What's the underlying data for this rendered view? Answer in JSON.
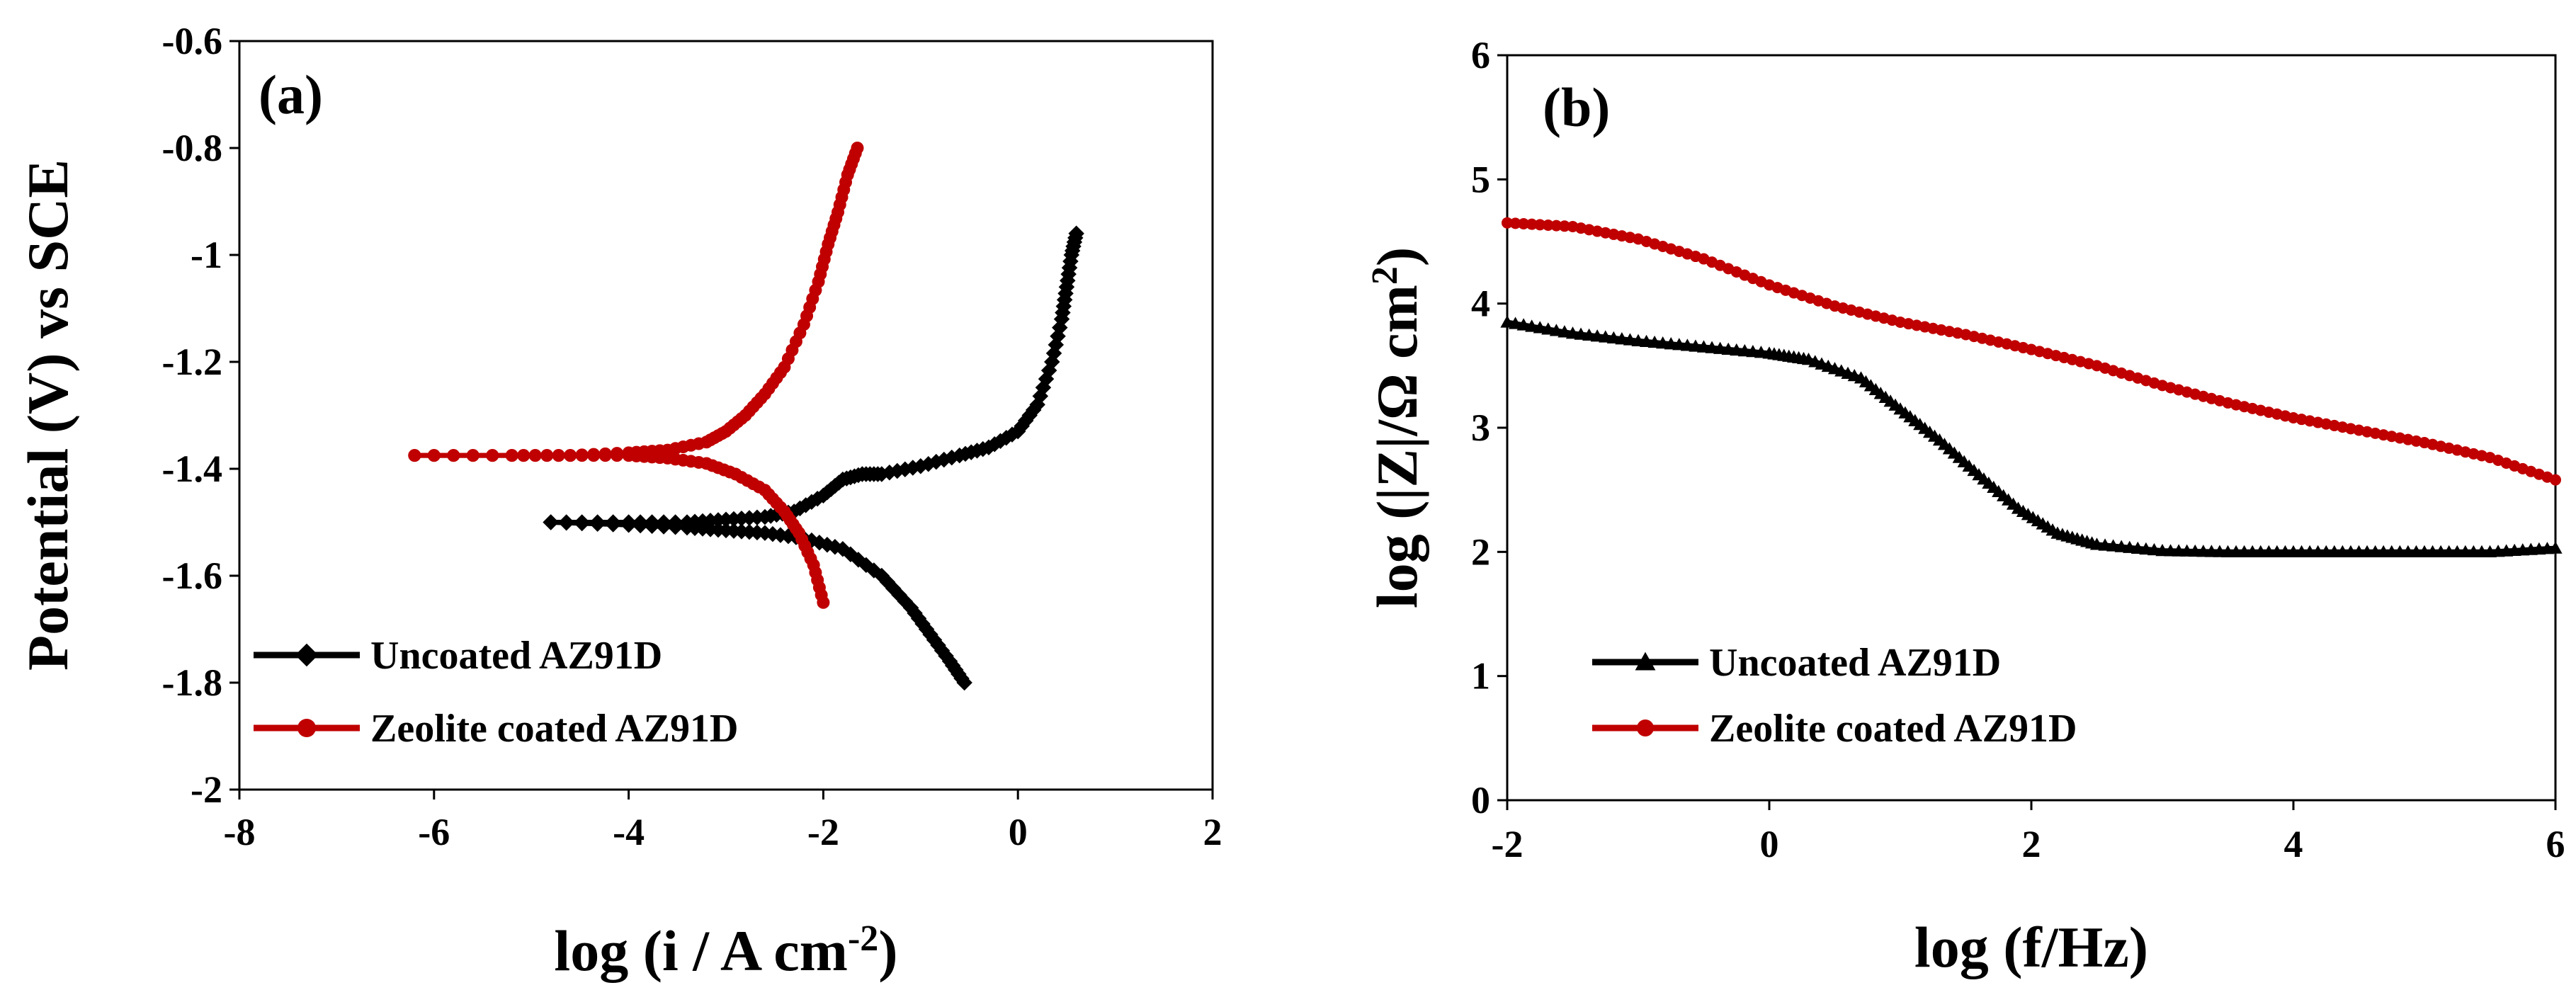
{
  "chart_data": [
    {
      "panel": "(a)",
      "type": "line",
      "xlabel_parts": [
        "log (i / A cm",
        "-2",
        ")"
      ],
      "ylabel": "Potential (V) vs SCE",
      "xlim": [
        -8,
        2
      ],
      "ylim": [
        -2,
        -0.6
      ],
      "xticks": [
        -8,
        -6,
        -4,
        -2,
        0,
        2
      ],
      "xtick_labels": [
        "-8",
        "-6",
        "-4",
        "-2",
        "0",
        "2"
      ],
      "yticks": [
        -2,
        -1.8,
        -1.6,
        -1.4,
        -1.2,
        -1,
        -0.8,
        -0.6
      ],
      "ytick_labels": [
        "-2",
        "-1.8",
        "-1.6",
        "-1.4",
        "-1.2",
        "-1",
        "-0.8",
        "-0.6"
      ],
      "legend_position": "bottom-left",
      "series": [
        {
          "name": "Uncoated AZ91D",
          "color": "#000000",
          "marker": "diamond",
          "branches": [
            {
              "x": [
                -4.8,
                -4.0,
                -3.4,
                -3.0,
                -2.6,
                -2.2,
                -1.8,
                -1.4,
                -1.1,
                -0.9,
                -0.7,
                -0.55
              ],
              "y": [
                -1.5,
                -1.505,
                -1.51,
                -1.515,
                -1.52,
                -1.53,
                -1.55,
                -1.6,
                -1.66,
                -1.71,
                -1.76,
                -1.8
              ]
            },
            {
              "x": [
                -4.8,
                -4.0,
                -3.4,
                -3.0,
                -2.6,
                -2.3,
                -2.0,
                -1.8,
                -1.6,
                -1.4,
                -1.0,
                -0.6,
                -0.3,
                0.0,
                0.2,
                0.35,
                0.45,
                0.5,
                0.55,
                0.6
              ],
              "y": [
                -1.5,
                -1.5,
                -1.5,
                -1.495,
                -1.49,
                -1.48,
                -1.45,
                -1.42,
                -1.41,
                -1.41,
                -1.395,
                -1.375,
                -1.36,
                -1.33,
                -1.28,
                -1.2,
                -1.12,
                -1.06,
                -1.0,
                -0.96
              ]
            }
          ]
        },
        {
          "name": "Zeolite coated AZ91D",
          "color": "#c00000",
          "marker": "circle",
          "branches": [
            {
              "x": [
                -6.2,
                -5.2,
                -4.6,
                -4.0,
                -3.6,
                -3.2,
                -2.9,
                -2.6,
                -2.4,
                -2.25,
                -2.1,
                -2.0
              ],
              "y": [
                -1.375,
                -1.375,
                -1.375,
                -1.375,
                -1.38,
                -1.39,
                -1.41,
                -1.44,
                -1.48,
                -1.52,
                -1.58,
                -1.65
              ]
            },
            {
              "x": [
                -6.2,
                -5.2,
                -4.6,
                -4.0,
                -3.6,
                -3.2,
                -3.0,
                -2.8,
                -2.6,
                -2.4,
                -2.2,
                -2.05,
                -1.95,
                -1.85,
                -1.75,
                -1.65
              ],
              "y": [
                -1.375,
                -1.375,
                -1.375,
                -1.37,
                -1.365,
                -1.35,
                -1.33,
                -1.3,
                -1.26,
                -1.21,
                -1.13,
                -1.05,
                -0.98,
                -0.92,
                -0.85,
                -0.8
              ]
            }
          ]
        }
      ]
    },
    {
      "panel": "(b)",
      "type": "line",
      "xlabel": "log (f/Hz)",
      "ylabel_parts": [
        "log (|Z|/Ω cm",
        "2",
        ")"
      ],
      "xlim": [
        -2,
        6
      ],
      "ylim": [
        0,
        6
      ],
      "xticks": [
        -2,
        0,
        2,
        4,
        6
      ],
      "xtick_labels": [
        "-2",
        "0",
        "2",
        "4",
        "6"
      ],
      "yticks": [
        0,
        1,
        2,
        3,
        4,
        5,
        6
      ],
      "ytick_labels": [
        "0",
        "1",
        "2",
        "3",
        "4",
        "5",
        "6"
      ],
      "legend_position": "bottom-left",
      "series": [
        {
          "name": "Uncoated AZ91D",
          "color": "#000000",
          "marker": "triangle",
          "x": [
            -2,
            -1.5,
            -1.0,
            -0.5,
            0.0,
            0.3,
            0.7,
            1.0,
            1.3,
            1.6,
            1.9,
            2.2,
            2.5,
            3.0,
            3.5,
            4.0,
            4.5,
            5.0,
            5.5,
            6.0
          ],
          "y": [
            3.85,
            3.76,
            3.7,
            3.65,
            3.6,
            3.55,
            3.4,
            3.15,
            2.9,
            2.62,
            2.35,
            2.15,
            2.06,
            2.01,
            2.0,
            2.0,
            2.0,
            2.0,
            2.0,
            2.03
          ]
        },
        {
          "name": "Zeolite coated AZ91D",
          "color": "#c00000",
          "marker": "circle",
          "x": [
            -2,
            -1.5,
            -1.0,
            -0.5,
            0.0,
            0.5,
            1.0,
            1.5,
            2.0,
            2.5,
            3.0,
            3.5,
            4.0,
            4.5,
            5.0,
            5.5,
            6.0
          ],
          "y": [
            4.65,
            4.62,
            4.52,
            4.36,
            4.15,
            3.98,
            3.85,
            3.75,
            3.63,
            3.5,
            3.34,
            3.2,
            3.08,
            2.98,
            2.88,
            2.76,
            2.58
          ]
        }
      ]
    }
  ]
}
